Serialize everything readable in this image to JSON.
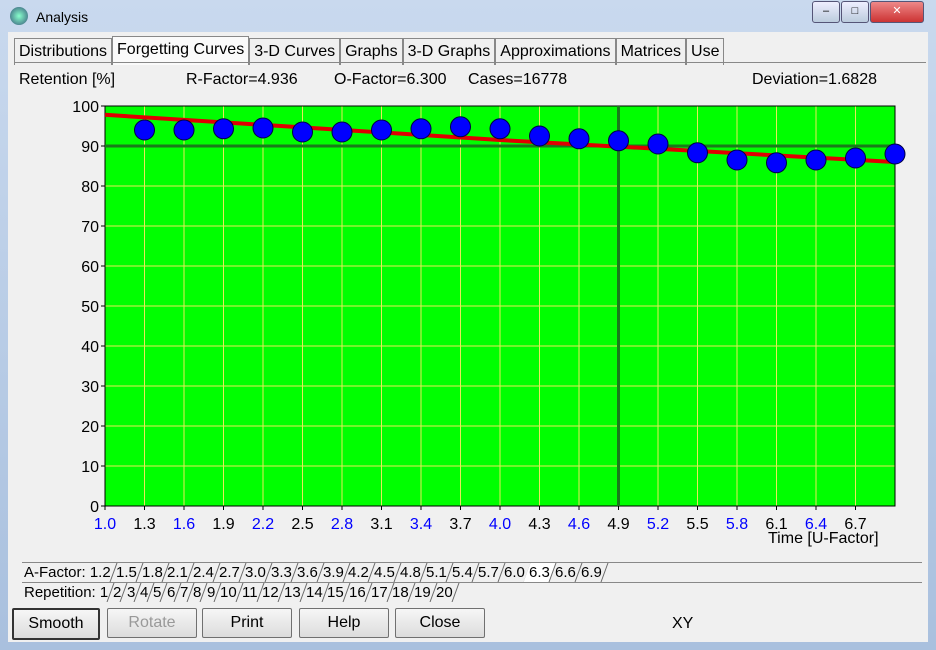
{
  "window": {
    "title": "Analysis"
  },
  "tabs": {
    "items": [
      "Distributions",
      "Forgetting Curves",
      "3-D Curves",
      "Graphs",
      "3-D Graphs",
      "Approximations",
      "Matrices",
      "Use"
    ],
    "selected": 1
  },
  "info": {
    "r_factor": "R-Factor=4.936",
    "o_factor": "O-Factor=6.300",
    "cases": "Cases=16778",
    "deviation": "Deviation=1.6828"
  },
  "chart_data": {
    "type": "scatter",
    "y_label": "Retention [%]",
    "x_label": "Time [U-Factor]",
    "x": [
      1.3,
      1.6,
      1.9,
      2.2,
      2.5,
      2.8,
      3.1,
      3.4,
      3.7,
      4.0,
      4.3,
      4.6,
      4.9,
      5.2,
      5.5,
      5.8,
      6.1,
      6.4,
      6.7,
      7.0
    ],
    "values": [
      94,
      94,
      94.3,
      94.5,
      93.5,
      93.5,
      94,
      94.3,
      94.8,
      94.3,
      92.5,
      91.8,
      91.3,
      90.5,
      88.3,
      86.5,
      85.8,
      86.5,
      87,
      88
    ],
    "color": "#0000ff",
    "fit": {
      "x": [
        1.0,
        4.0,
        7.0
      ],
      "values": [
        97.8,
        91.5,
        86
      ],
      "color": "#e00000"
    },
    "hline": 90,
    "vline": 4.9,
    "ref_color": "#1a7a1a",
    "background": "#00ff00",
    "grid": true,
    "grid_color": "#e8e85a",
    "tick_colors": [
      "#0000ff",
      "#000000"
    ],
    "xlim": [
      1.0,
      7.0
    ],
    "ylim": [
      0,
      100
    ],
    "xticks": [
      {
        "value": 1.0,
        "label": "1.0"
      },
      1.3,
      1.6,
      1.9,
      2.2,
      2.5,
      2.8,
      3.1,
      3.4,
      3.7,
      {
        "value": 4.0,
        "label": "4.0"
      },
      4.3,
      4.6,
      4.9,
      5.2,
      5.5,
      5.8,
      6.1,
      6.4,
      6.7
    ],
    "yticks": [
      0,
      10,
      20,
      30,
      40,
      50,
      60,
      70,
      80,
      90,
      100
    ]
  },
  "a_factor": {
    "items": [
      "A-Factor: 1.2",
      "1.5",
      "1.8",
      "2.1",
      "2.4",
      "2.7",
      "3.0",
      "3.3",
      "3.6",
      "3.9",
      "4.2",
      "4.5",
      "4.8",
      "5.1",
      "5.4",
      "5.7",
      "6.0",
      "6.3",
      "6.6",
      "6.9"
    ],
    "selected": 17
  },
  "repetition": {
    "items": [
      "Repetition: 1",
      "2",
      "3",
      "4",
      "5",
      "6",
      "7",
      "8",
      "9",
      "10",
      "11",
      "12",
      "13",
      "14",
      "15",
      "16",
      "17",
      "18",
      "19",
      "20"
    ]
  },
  "buttons": {
    "smooth": "Smooth",
    "rotate": "Rotate",
    "print": "Print",
    "help": "Help",
    "close": "Close"
  },
  "status": "XY"
}
